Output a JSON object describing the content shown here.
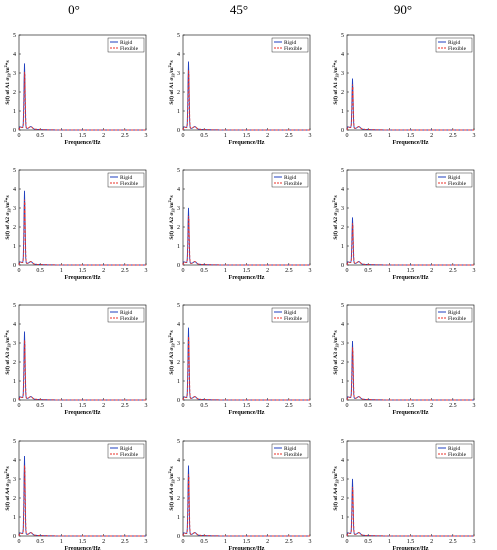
{
  "columns": [
    "0°",
    "45°",
    "90°"
  ],
  "xlabel": "Frequence/Hz",
  "legend": [
    "Rigid",
    "Flexible"
  ],
  "colors": {
    "rigid": "#1f3fbf",
    "flexible": "#e8312a"
  },
  "chart_data": {
    "type": "line",
    "layout": "4 rows x 3 columns of small multiples",
    "xlim": [
      0,
      3
    ],
    "ylim": [
      0,
      5
    ],
    "xticks": [
      "0",
      "0.5",
      "1",
      "1.5",
      "2",
      "2.5",
      "3"
    ],
    "yticks": [
      "0",
      "1",
      "2",
      "3",
      "4",
      "5"
    ],
    "legend_position": "top-right",
    "rows": [
      {
        "ylabel_main": "S(f) of A1 σ",
        "ylabel_sub": "33",
        "ylabel_tail": "/m",
        "ylabel_sup": "2",
        "ylabel_end": "*s",
        "panels": [
          {
            "column": "0°",
            "rigid_peak": 3.4,
            "flexible_peak": 3.1,
            "peak_freq": 0.13
          },
          {
            "column": "45°",
            "rigid_peak": 3.5,
            "flexible_peak": 3.2,
            "peak_freq": 0.13
          },
          {
            "column": "90°",
            "rigid_peak": 2.6,
            "flexible_peak": 2.4,
            "peak_freq": 0.13
          }
        ]
      },
      {
        "ylabel_main": "S(f) of A2 σ",
        "ylabel_sub": "33",
        "ylabel_tail": "/m",
        "ylabel_sup": "2",
        "ylabel_end": "*s",
        "panels": [
          {
            "column": "0°",
            "rigid_peak": 3.8,
            "flexible_peak": 3.5,
            "peak_freq": 0.13
          },
          {
            "column": "45°",
            "rigid_peak": 2.9,
            "flexible_peak": 2.6,
            "peak_freq": 0.13
          },
          {
            "column": "90°",
            "rigid_peak": 2.4,
            "flexible_peak": 2.2,
            "peak_freq": 0.13
          }
        ]
      },
      {
        "ylabel_main": "S(f) of A3 σ",
        "ylabel_sub": "33",
        "ylabel_tail": "/m",
        "ylabel_sup": "2",
        "ylabel_end": "*s",
        "panels": [
          {
            "column": "0°",
            "rigid_peak": 3.5,
            "flexible_peak": 3.2,
            "peak_freq": 0.13
          },
          {
            "column": "45°",
            "rigid_peak": 3.7,
            "flexible_peak": 3.4,
            "peak_freq": 0.13
          },
          {
            "column": "90°",
            "rigid_peak": 3.0,
            "flexible_peak": 2.8,
            "peak_freq": 0.13
          }
        ]
      },
      {
        "ylabel_main": "S(f) of A4 σ",
        "ylabel_sub": "33",
        "ylabel_tail": "/m",
        "ylabel_sup": "2",
        "ylabel_end": "*s",
        "panels": [
          {
            "column": "0°",
            "rigid_peak": 4.1,
            "flexible_peak": 3.8,
            "peak_freq": 0.13
          },
          {
            "column": "45°",
            "rigid_peak": 3.6,
            "flexible_peak": 3.3,
            "peak_freq": 0.13
          },
          {
            "column": "90°",
            "rigid_peak": 2.9,
            "flexible_peak": 2.6,
            "peak_freq": 0.13
          }
        ]
      }
    ]
  }
}
